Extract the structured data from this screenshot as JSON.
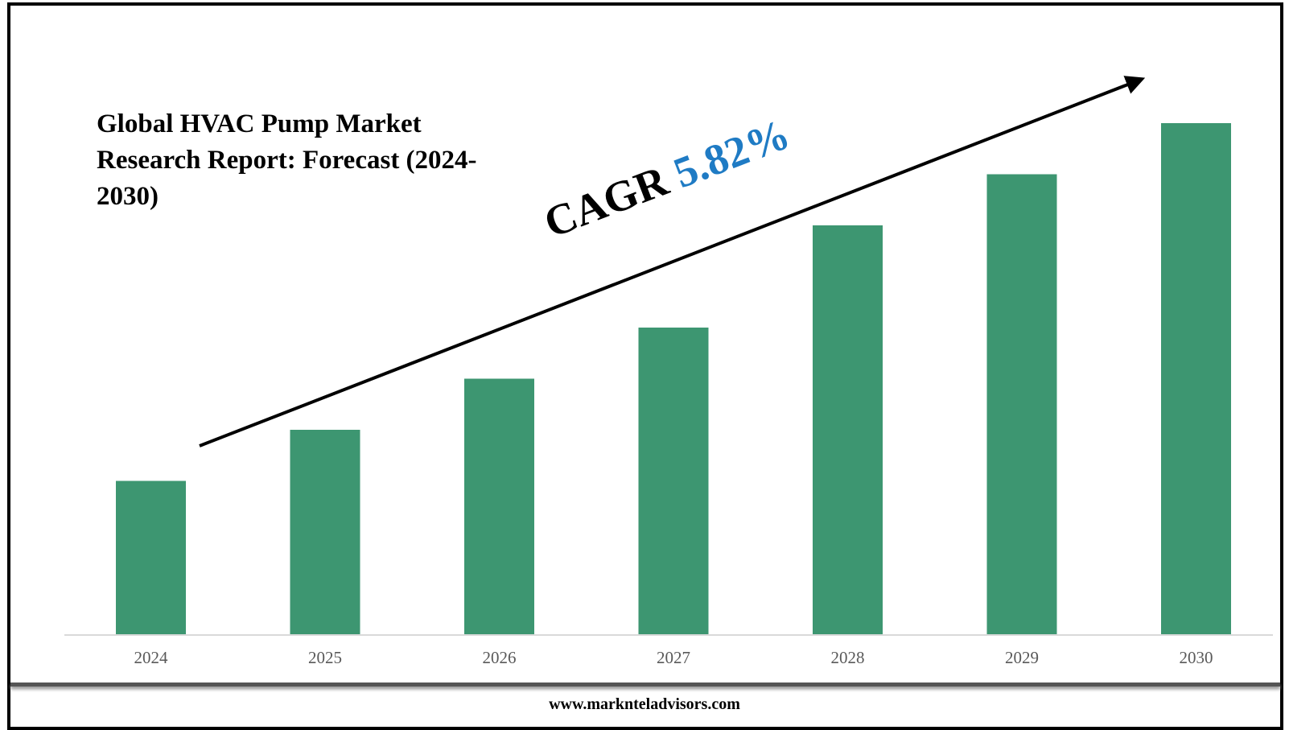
{
  "chart_data": {
    "type": "bar",
    "title": "Global HVAC Pump Market Research Report: Forecast (2024-2030)",
    "categories": [
      "2024",
      "2025",
      "2026",
      "2027",
      "2028",
      "2029",
      "2030"
    ],
    "values": [
      30,
      40,
      50,
      60,
      80,
      90,
      100
    ],
    "value_note": "relative bar heights (2030 = 100); no y-axis values shown",
    "xlabel": "",
    "ylabel": "",
    "ylim": [
      0,
      100
    ],
    "bar_color": "#3d9671",
    "annotation": {
      "label": "CAGR",
      "value": "5.82%",
      "value_color": "#1f7bc4"
    },
    "grid": false
  },
  "footer": "www.marknteladvisors.com"
}
